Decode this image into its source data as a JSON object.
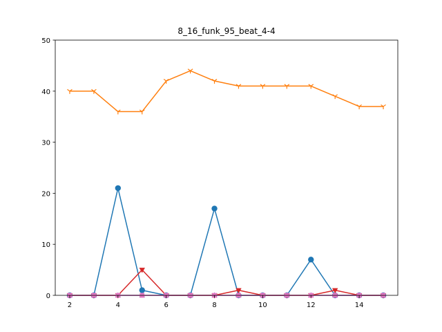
{
  "chart_data": {
    "type": "line",
    "title": "8_16_funk_95_beat_4-4",
    "xlabel": "",
    "ylabel": "",
    "xlim": [
      1.4,
      15.6
    ],
    "ylim": [
      0,
      50
    ],
    "xticks": [
      2,
      4,
      6,
      8,
      10,
      12,
      14
    ],
    "yticks": [
      0,
      10,
      20,
      30,
      40,
      50
    ],
    "grid": false,
    "x": [
      2,
      3,
      4,
      5,
      6,
      7,
      8,
      9,
      10,
      11,
      12,
      13,
      14,
      15
    ],
    "series": [
      {
        "color": "#1f77b4",
        "marker": "circle",
        "values": [
          0,
          0,
          21,
          1,
          0,
          0,
          17,
          0,
          0,
          0,
          7,
          0,
          0,
          0
        ]
      },
      {
        "color": "#ff7f0e",
        "marker": "tri_down",
        "values": [
          40,
          40,
          36,
          36,
          42,
          44,
          42,
          41,
          41,
          41,
          41,
          39,
          37,
          37
        ]
      },
      {
        "color": "#9467bd",
        "marker": "triangle_up",
        "values": [
          0,
          0,
          0,
          0,
          0,
          0,
          0,
          0,
          0,
          0,
          0,
          0,
          0,
          0
        ]
      },
      {
        "color": "#d62728",
        "marker": "triangle_down",
        "values": [
          0,
          0,
          0,
          5,
          0,
          0,
          0,
          1,
          0,
          0,
          0,
          1,
          0,
          0
        ]
      },
      {
        "color": "#e377c2",
        "marker": "square",
        "values": [
          0,
          0,
          0,
          0,
          0,
          0,
          0,
          0,
          0,
          0,
          0,
          0,
          0,
          0
        ]
      }
    ]
  }
}
